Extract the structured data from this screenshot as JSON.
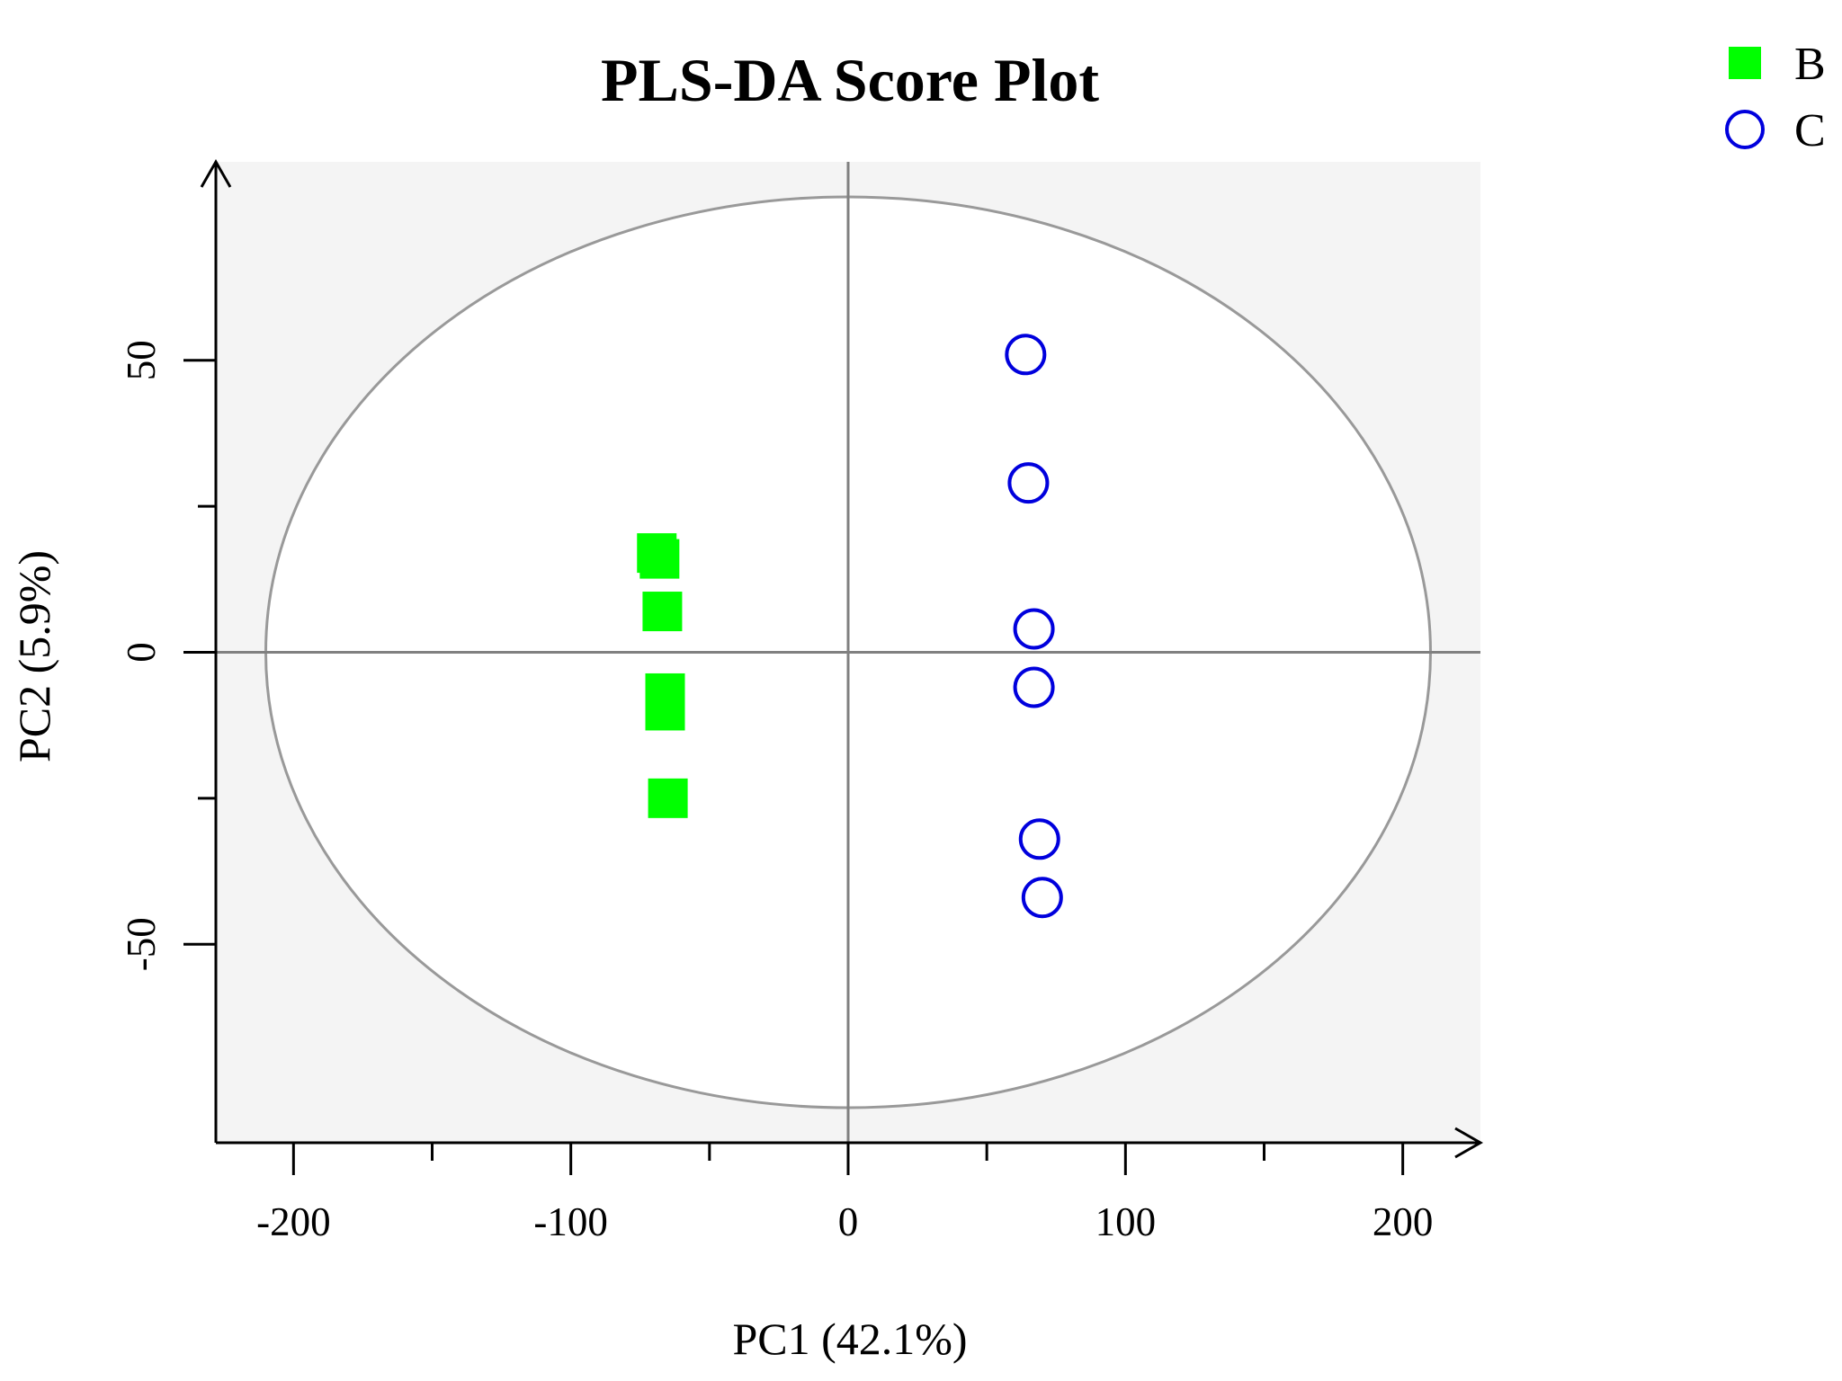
{
  "chart_data": {
    "type": "scatter",
    "title": "PLS-DA Score Plot",
    "xlabel": "PC1 (42.1%)",
    "ylabel": "PC2 (5.9%)",
    "xlim": [
      -228,
      228
    ],
    "ylim": [
      -84,
      84
    ],
    "x_ticks": [
      -200,
      -100,
      0,
      100,
      200
    ],
    "x_minor_ticks": [
      -150,
      -50,
      50,
      150
    ],
    "y_ticks": [
      -50,
      0,
      50
    ],
    "y_minor_ticks": [
      -25,
      25
    ],
    "confidence_ellipse": {
      "center": [
        0,
        0
      ],
      "semi_axis_x": 210,
      "semi_axis_y": 78
    },
    "reference_lines": {
      "x": 0,
      "y": 0
    },
    "legend_position": "top-right",
    "series": [
      {
        "name": "B",
        "marker": "filled-square",
        "color": "#00ff00",
        "points": [
          {
            "x": -69,
            "y": 17
          },
          {
            "x": -68,
            "y": 16
          },
          {
            "x": -67,
            "y": 7
          },
          {
            "x": -66,
            "y": -7
          },
          {
            "x": -66,
            "y": -10
          },
          {
            "x": -65,
            "y": -25
          }
        ]
      },
      {
        "name": "C",
        "marker": "open-circle",
        "color": "#0000dd",
        "points": [
          {
            "x": 64,
            "y": 51
          },
          {
            "x": 65,
            "y": 29
          },
          {
            "x": 67,
            "y": 4
          },
          {
            "x": 67,
            "y": -6
          },
          {
            "x": 69,
            "y": -32
          },
          {
            "x": 70,
            "y": -42
          }
        ]
      }
    ],
    "colors": {
      "panel_background": "#f4f4f4",
      "ellipse_fill": "#ffffff",
      "ellipse_stroke": "#999999",
      "reference_line": "#808080",
      "axis": "#000000"
    }
  }
}
